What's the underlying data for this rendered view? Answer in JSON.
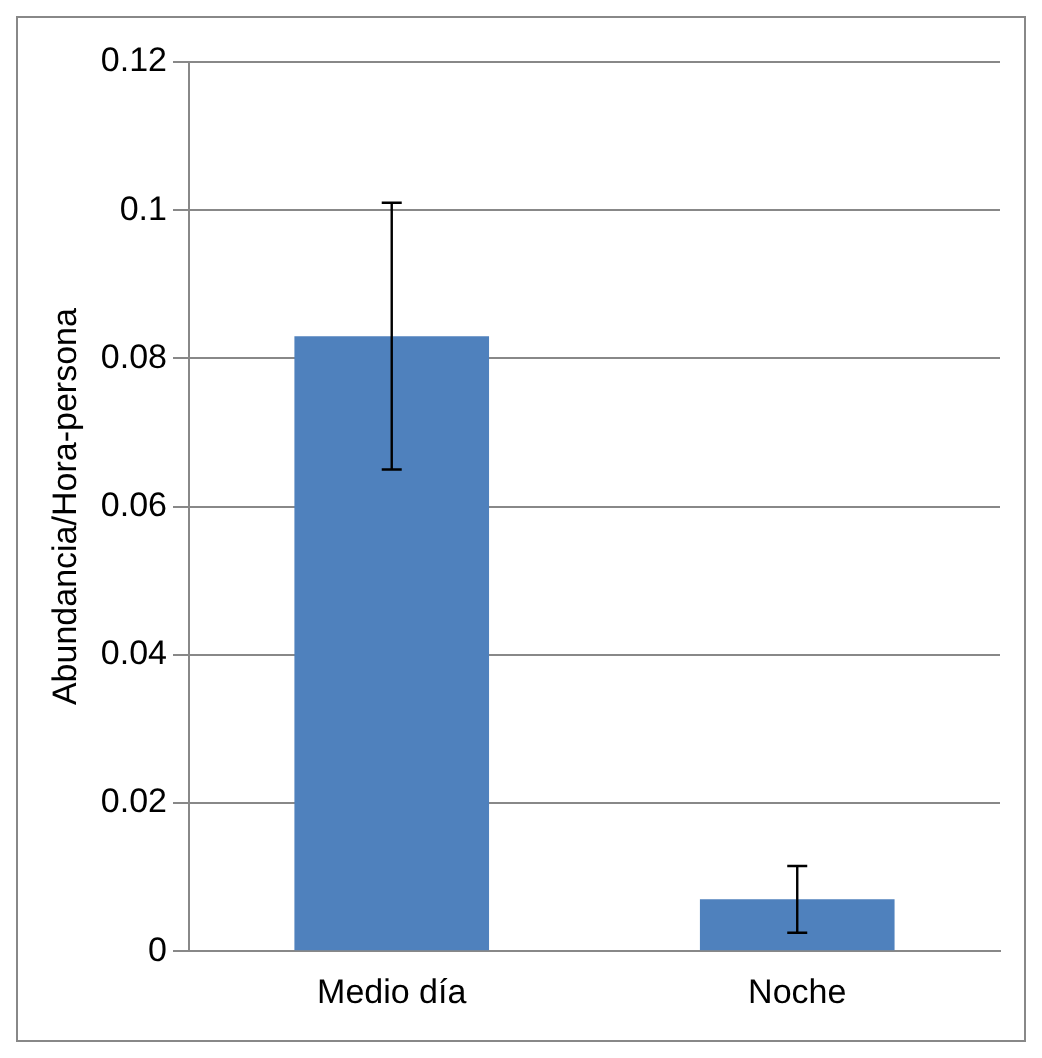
{
  "chart_data": {
    "type": "bar",
    "ylabel": "Abundancia/Hora-persona",
    "categories": [
      "Medio día",
      "Noche"
    ],
    "values": [
      0.083,
      0.007
    ],
    "errors": [
      [
        0.065,
        0.101
      ],
      [
        0.0025,
        0.0115
      ]
    ],
    "color": "#4f81bd",
    "ylim": [
      0,
      0.12
    ],
    "yticks": [
      0,
      0.02,
      0.04,
      0.06,
      0.08,
      0.1,
      0.12
    ],
    "grid": "y"
  }
}
